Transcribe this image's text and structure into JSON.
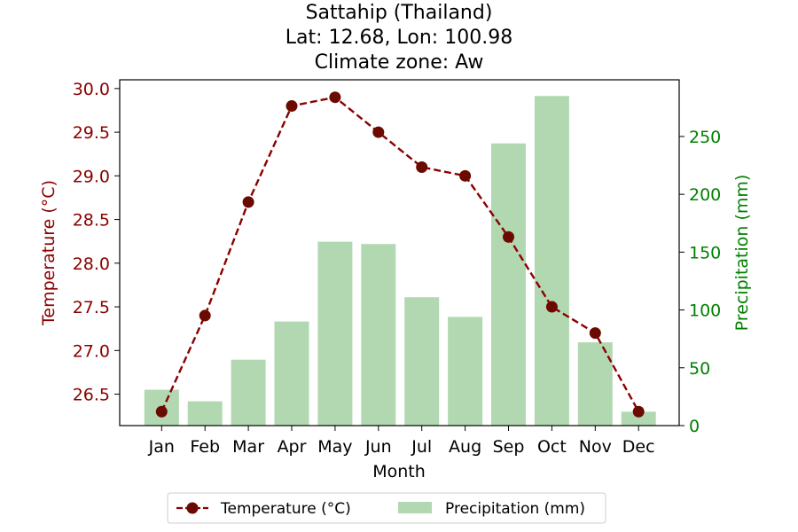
{
  "chart_data": {
    "type": "bar+line",
    "title_lines": [
      "Sattahip (Thailand)",
      "Lat: 12.68, Lon: 100.98",
      "Climate zone: Aw"
    ],
    "xlabel": "Month",
    "categories": [
      "Jan",
      "Feb",
      "Mar",
      "Apr",
      "May",
      "Jun",
      "Jul",
      "Aug",
      "Sep",
      "Oct",
      "Nov",
      "Dec"
    ],
    "temperature": {
      "name": "Temperature (°C)",
      "ylabel": "Temperature (°C)",
      "values": [
        26.3,
        27.4,
        28.7,
        29.8,
        29.9,
        29.5,
        29.1,
        29.0,
        28.3,
        27.5,
        27.2,
        26.3
      ],
      "ylim": [
        26.14,
        30.1
      ],
      "ticks": [
        "26.5",
        "27.0",
        "27.5",
        "28.0",
        "28.5",
        "29.0",
        "29.5",
        "30.0"
      ],
      "color": "#8b0000",
      "marker_color": "#6b0a00"
    },
    "precipitation": {
      "name": "Precipitation (mm)",
      "ylabel": "Precipitation (mm)",
      "values": [
        31,
        21,
        57,
        90,
        159,
        157,
        111,
        94,
        244,
        285,
        72,
        12
      ],
      "ylim": [
        0,
        299
      ],
      "ticks": [
        "0",
        "50",
        "100",
        "150",
        "200",
        "250"
      ],
      "color": "#b2d8b2",
      "axis_color": "#008000"
    },
    "legend_position": "below-center"
  }
}
